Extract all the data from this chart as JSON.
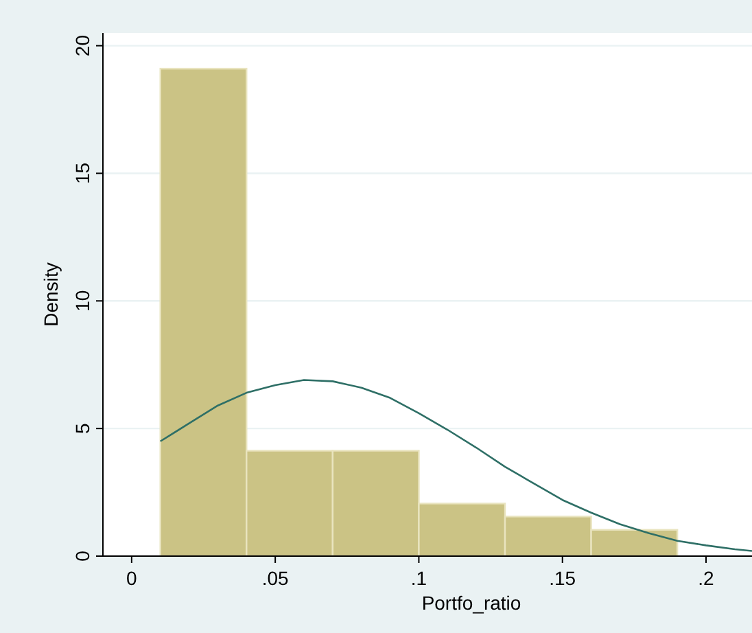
{
  "chart_data": {
    "type": "histogram",
    "xlabel": "Portfo_ratio",
    "ylabel": "Density",
    "bins": [
      0.01,
      0.04,
      0.07,
      0.1,
      0.13,
      0.16,
      0.19
    ],
    "values": [
      19.1,
      4.13,
      4.13,
      2.06,
      1.55,
      1.03
    ],
    "color": "#cbc385",
    "series": [
      {
        "type": "line",
        "color": "#2e6f66",
        "x": [
          0.01,
          0.02,
          0.03,
          0.04,
          0.05,
          0.06,
          0.07,
          0.08,
          0.09,
          0.1,
          0.11,
          0.12,
          0.13,
          0.14,
          0.15,
          0.16,
          0.17,
          0.18,
          0.19,
          0.2,
          0.21,
          0.216
        ],
        "values": [
          4.5,
          5.2,
          5.9,
          6.4,
          6.7,
          6.9,
          6.85,
          6.6,
          6.2,
          5.6,
          4.95,
          4.25,
          3.5,
          2.85,
          2.2,
          1.7,
          1.25,
          0.9,
          0.6,
          0.42,
          0.27,
          0.2
        ]
      }
    ],
    "xlim": [
      -0.01,
      0.216
    ],
    "ylim": [
      0,
      20.5
    ],
    "xticks": [
      0,
      {
        "value": 0.05,
        "label": ".05"
      },
      {
        "value": 0.1,
        "label": ".1"
      },
      {
        "value": 0.15,
        "label": ".15"
      },
      {
        "value": 0.2,
        "label": ".2"
      }
    ],
    "yticks": [
      0,
      5,
      10,
      15,
      20
    ],
    "grid": "y"
  }
}
